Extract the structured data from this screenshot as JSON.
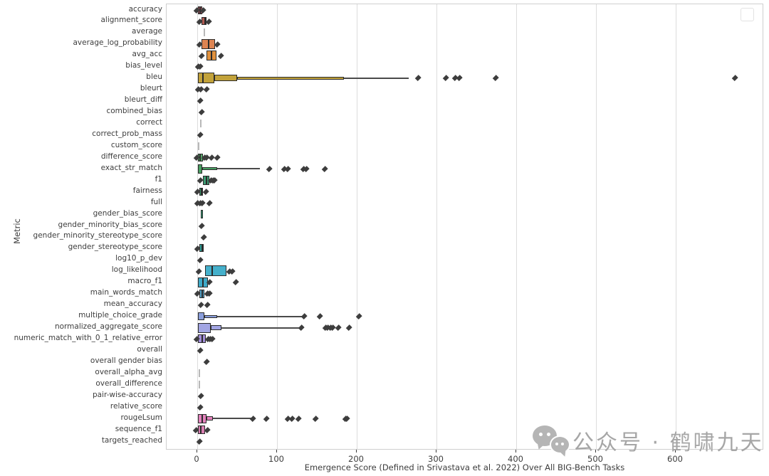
{
  "chart_data": {
    "type": "boxen",
    "orientation": "horizontal",
    "title": "",
    "xlabel": "Emergence Score (Defined in Srivastava et al. 2022) Over All BIG-Bench Tasks",
    "ylabel": "Metric",
    "xlim": [
      -38.4,
      710.7
    ],
    "xticks": [
      0,
      100,
      200,
      300,
      400,
      500,
      600
    ],
    "grid": "vertical-light-gray",
    "legend": "empty-box-top-right",
    "outlier_color": "#3d3d3d",
    "rows": [
      {
        "label": "accuracy",
        "color": "#a9565e",
        "segs": [
          [
            0.5,
            6,
            11
          ]
        ],
        "median": 3,
        "dots": [
          -0.7,
          7.5
        ]
      },
      {
        "label": "alignment_score",
        "color": "#b35b52",
        "segs": [
          [
            5.5,
            11.5,
            11
          ]
        ],
        "median": 8.5,
        "dots": [
          2.5,
          14.5
        ]
      },
      {
        "label": "average",
        "tick": 8
      },
      {
        "label": "average_log_probability",
        "color": "#dd8452",
        "segs": [
          [
            5.5,
            22,
            14
          ]
        ],
        "median": 13,
        "dots": [
          2.5,
          25.5
        ]
      },
      {
        "label": "avg_acc",
        "color": "#e0913d",
        "segs": [
          [
            11.5,
            24,
            14
          ]
        ],
        "median": 17,
        "dots": [
          6,
          29.5
        ]
      },
      {
        "label": "bias_level",
        "dots": [
          1.5,
          3.5
        ]
      },
      {
        "label": "bleu",
        "color": "#c2a23a",
        "segs": [
          [
            0.5,
            21,
            15
          ],
          [
            21,
            50,
            9
          ],
          [
            50,
            184,
            4
          ]
        ],
        "median": 6,
        "whisker": [
          184,
          265
        ],
        "dots": [
          277,
          312,
          323,
          329,
          374,
          674
        ]
      },
      {
        "label": "bleurt",
        "dots": [
          1,
          5,
          12
        ]
      },
      {
        "label": "bleurt_diff",
        "dots": [
          4
        ]
      },
      {
        "label": "combined_bias",
        "dots": [
          6
        ]
      },
      {
        "label": "correct",
        "tick": 4
      },
      {
        "label": "correct_prob_mass",
        "dots": [
          4
        ]
      },
      {
        "label": "custom_score",
        "tick": 0.5
      },
      {
        "label": "difference_score",
        "color": "#55a868",
        "segs": [
          [
            0.5,
            7,
            11
          ]
        ],
        "median": 3,
        "dots": [
          -1,
          9.5,
          11.5,
          18,
          25
        ]
      },
      {
        "label": "exact_str_match",
        "color": "#4aa063",
        "segs": [
          [
            0.5,
            6,
            13
          ],
          [
            6,
            25,
            4
          ]
        ],
        "whisker": [
          25,
          79
        ],
        "dots": [
          90,
          109,
          114,
          133,
          137,
          160
        ]
      },
      {
        "label": "f1",
        "color": "#3d9c73",
        "segs": [
          [
            7,
            15,
            13
          ]
        ],
        "median": 11,
        "dots": [
          3.5,
          17.5,
          19.5,
          22
        ]
      },
      {
        "label": "fairness",
        "color": "#38a06e",
        "segs": [
          [
            2.5,
            7,
            11
          ]
        ],
        "median": 4.5,
        "dots": [
          0,
          11
        ]
      },
      {
        "label": "full",
        "dots": [
          0.5,
          3.5,
          6.5,
          15
        ]
      },
      {
        "label": "gender_bias_score",
        "color": "#33a076",
        "segs": [
          [
            4.5,
            7.5,
            12
          ]
        ]
      },
      {
        "label": "gender_minority_bias_score",
        "dots": [
          6
        ]
      },
      {
        "label": "gender_minority_stereotype_score",
        "dots": [
          8
        ]
      },
      {
        "label": "gender_stereotype_score",
        "color": "#2fa39b",
        "segs": [
          [
            2.5,
            8,
            11
          ]
        ],
        "median": 5,
        "dots": [
          0.5
        ]
      },
      {
        "label": "log10_p_dev",
        "dots": [
          3.5
        ]
      },
      {
        "label": "log_likelihood",
        "color": "#45b0cb",
        "segs": [
          [
            10,
            37,
            15
          ]
        ],
        "median": 18,
        "dots": [
          2,
          40,
          44
        ]
      },
      {
        "label": "macro_f1",
        "color": "#3fabc9",
        "segs": [
          [
            0.5,
            13,
            14
          ]
        ],
        "median": 6,
        "dots": [
          15.5,
          48
        ]
      },
      {
        "label": "main_words_match",
        "color": "#54a5cd",
        "segs": [
          [
            3,
            9,
            12
          ]
        ],
        "median": 5.5,
        "dots": [
          0.5,
          13,
          15.5
        ]
      },
      {
        "label": "mean_accuracy",
        "dots": [
          4.5,
          12.5
        ]
      },
      {
        "label": "multiple_choice_grade",
        "color": "#8a9edb",
        "segs": [
          [
            0.5,
            9,
            11
          ],
          [
            9,
            25,
            4
          ]
        ],
        "whisker": [
          25,
          133
        ],
        "dots": [
          134,
          154,
          203
        ]
      },
      {
        "label": "normalized_aggregate_score",
        "color": "#a2a5e3",
        "segs": [
          [
            0.5,
            17,
            14
          ],
          [
            17,
            30,
            7
          ]
        ],
        "whisker": [
          30,
          130
        ],
        "dots": [
          131,
          161,
          164,
          167,
          170,
          177,
          190
        ]
      },
      {
        "label": "numeric_match_with_0_1_relative_error",
        "color": "#a38fd9",
        "segs": [
          [
            0.5,
            11,
            12
          ]
        ],
        "median": 5,
        "dots": [
          -1,
          13.5,
          16,
          19
        ]
      },
      {
        "label": "overall",
        "dots": [
          3.5
        ]
      },
      {
        "label": "overall gender bias",
        "dots": [
          11.5
        ]
      },
      {
        "label": "overall_alpha_avg",
        "tick": 2
      },
      {
        "label": "overall_difference",
        "tick": 2
      },
      {
        "label": "pair-wise-accuracy",
        "dots": [
          4.5
        ]
      },
      {
        "label": "relative_score",
        "dots": [
          3.5
        ]
      },
      {
        "label": "rougeLsum",
        "color": "#e383bd",
        "segs": [
          [
            0.5,
            12,
            13
          ],
          [
            12,
            20,
            6
          ]
        ],
        "median": 5,
        "whisker": [
          20,
          68
        ],
        "dots": [
          70,
          87,
          114,
          119,
          127,
          148,
          186,
          188
        ]
      },
      {
        "label": "sequence_f1",
        "color": "#d97fb2",
        "segs": [
          [
            0.5,
            10,
            12
          ]
        ],
        "median": 4,
        "dots": [
          -1.5,
          13
        ]
      },
      {
        "label": "targets_reached",
        "dots": [
          3
        ]
      }
    ]
  },
  "watermark": {
    "icon": "wechat-icon",
    "text": "公众号 · 鹤啸九天"
  }
}
